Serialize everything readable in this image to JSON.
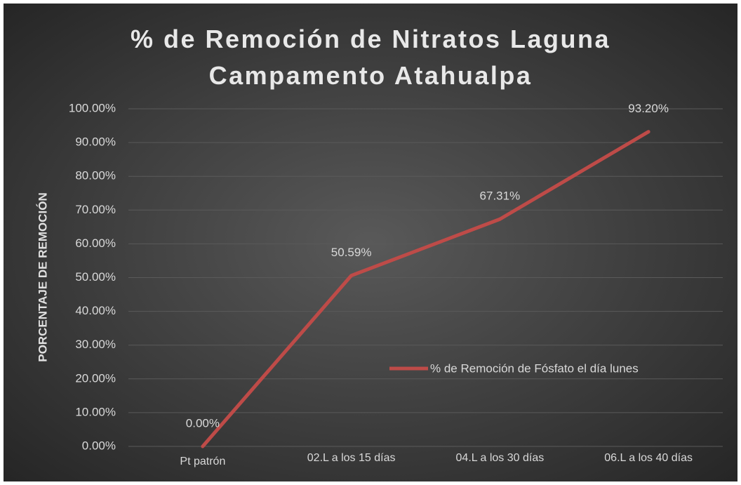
{
  "chart_data": {
    "type": "line",
    "title": "% de Remoción de Nitratos Laguna Campamento Atahualpa",
    "y_label": "PORCENTAJE DE REMOCIÓN",
    "categories": [
      "Pt patrón",
      "02.L a los 15 días",
      "04.L a los 30 días",
      "06.L a los 40 días"
    ],
    "series": [
      {
        "name": "% de Remoción de Fósfato el día lunes",
        "color": "#be4b48",
        "values": [
          0,
          50.59,
          67.31,
          93.2
        ],
        "value_labels": [
          "0.00%",
          "50.59%",
          "67.31%",
          "93.20%"
        ]
      }
    ],
    "ylim": [
      0,
      100
    ],
    "yticks": [
      {
        "value": 0,
        "label": "0.00%"
      },
      {
        "value": 10,
        "label": "10.00%"
      },
      {
        "value": 20,
        "label": "20.00%"
      },
      {
        "value": 30,
        "label": "30.00%"
      },
      {
        "value": 40,
        "label": "40.00%"
      },
      {
        "value": 50,
        "label": "50.00%"
      },
      {
        "value": 60,
        "label": "60.00%"
      },
      {
        "value": 70,
        "label": "70.00%"
      },
      {
        "value": 80,
        "label": "80.00%"
      },
      {
        "value": 90,
        "label": "90.00%"
      },
      {
        "value": 100,
        "label": "100.00%"
      }
    ],
    "grid": true,
    "legend": "right"
  }
}
